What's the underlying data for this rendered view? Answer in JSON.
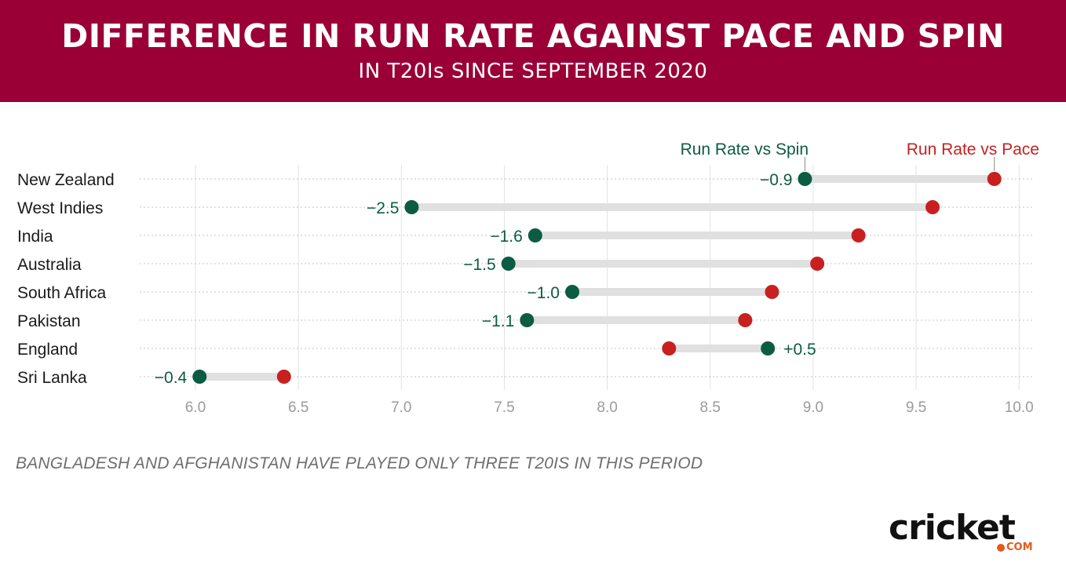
{
  "header": {
    "title": "DIFFERENCE IN RUN RATE AGAINST PACE AND SPIN",
    "subtitle": "IN T20Is SINCE SEPTEMBER 2020"
  },
  "colors": {
    "banner": "#9a0036",
    "spin": "#0b5c43",
    "pace": "#c8201f",
    "connector": "#e0e0e0",
    "axis_text": "#9b9b9b"
  },
  "chart_data": {
    "type": "dumbbell",
    "categories": [
      "New Zealand",
      "West Indies",
      "India",
      "Australia",
      "South Africa",
      "Pakistan",
      "England",
      "Sri Lanka"
    ],
    "series": [
      {
        "name": "Run Rate vs Spin",
        "values": [
          8.96,
          7.05,
          7.65,
          7.52,
          7.83,
          7.61,
          8.78,
          6.02
        ]
      },
      {
        "name": "Run Rate vs Pace",
        "values": [
          9.88,
          9.58,
          9.22,
          9.02,
          8.8,
          8.67,
          8.3,
          6.43
        ]
      }
    ],
    "difference_labels": [
      "−0.9",
      "−2.5",
      "−1.6",
      "−1.5",
      "−1.0",
      "−1.1",
      "+0.5",
      "−0.4"
    ],
    "x_ticks": [
      "6.0",
      "6.5",
      "7.0",
      "7.5",
      "8.0",
      "8.5",
      "9.0",
      "9.5",
      "10.0"
    ],
    "xlim": [
      5.72,
      10.05
    ],
    "grid": true,
    "legend_placement": "top-right, above first row"
  },
  "footnote": "BANGLADESH AND AFGHANISTAN HAVE PLAYED ONLY THREE T20IS IN THIS PERIOD",
  "logo": {
    "text": "cricket",
    "suffix": "COM"
  }
}
